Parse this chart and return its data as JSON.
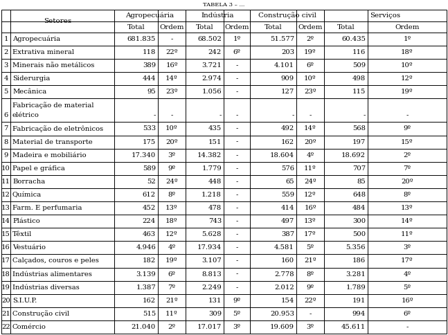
{
  "col_groups": [
    "Agropecuária",
    "Indústria",
    "Construção civil",
    "Serviços"
  ],
  "data": [
    [
      "681.835",
      "-",
      "68.502",
      "1º",
      "51.577",
      "2º",
      "60.435",
      "1º"
    ],
    [
      "118",
      "22º",
      "242",
      "6º",
      "203",
      "19º",
      "116",
      "18º"
    ],
    [
      "389",
      "16º",
      "3.721",
      "-",
      "4.101",
      "6º",
      "509",
      "10º"
    ],
    [
      "444",
      "14º",
      "2.974",
      "-",
      "909",
      "10º",
      "498",
      "12º"
    ],
    [
      "95",
      "23º",
      "1.056",
      "-",
      "127",
      "23º",
      "115",
      "19º"
    ],
    [
      "-",
      "-",
      "-",
      "-",
      "-",
      "-",
      "-",
      "-"
    ],
    [
      "533",
      "10º",
      "435",
      "-",
      "492",
      "14º",
      "568",
      "9º"
    ],
    [
      "175",
      "20º",
      "151",
      "-",
      "162",
      "20º",
      "197",
      "15º"
    ],
    [
      "17.340",
      "3º",
      "14.382",
      "-",
      "18.604",
      "4º",
      "18.692",
      "2º"
    ],
    [
      "589",
      "9º",
      "1.779",
      "-",
      "576",
      "11º",
      "707",
      "7º"
    ],
    [
      "52",
      "24º",
      "448",
      "-",
      "65",
      "24º",
      "85",
      "20º"
    ],
    [
      "612",
      "8º",
      "1.218",
      "-",
      "559",
      "12º",
      "648",
      "8º"
    ],
    [
      "452",
      "13º",
      "478",
      "-",
      "414",
      "16º",
      "484",
      "13º"
    ],
    [
      "224",
      "18º",
      "743",
      "-",
      "497",
      "13º",
      "300",
      "14º"
    ],
    [
      "463",
      "12º",
      "5.628",
      "-",
      "387",
      "17º",
      "500",
      "11º"
    ],
    [
      "4.946",
      "4º",
      "17.934",
      "-",
      "4.581",
      "5º",
      "5.356",
      "3º"
    ],
    [
      "182",
      "19º",
      "3.107",
      "-",
      "160",
      "21º",
      "186",
      "17º"
    ],
    [
      "3.139",
      "6º",
      "8.813",
      "-",
      "2.778",
      "8º",
      "3.281",
      "4º"
    ],
    [
      "1.387",
      "7º",
      "2.249",
      "-",
      "2.012",
      "9º",
      "1.789",
      "5º"
    ],
    [
      "162",
      "21º",
      "131",
      "9º",
      "154",
      "22º",
      "191",
      "16º"
    ],
    [
      "515",
      "11º",
      "309",
      "5º",
      "20.953",
      "-",
      "994",
      "6º"
    ],
    [
      "21.040",
      "2º",
      "17.017",
      "3º",
      "19.609",
      "3º",
      "45.611",
      "-"
    ]
  ],
  "row_labels": [
    [
      "1",
      "Agropecuária"
    ],
    [
      "2",
      "Extrativa mineral"
    ],
    [
      "3",
      "Minerais não metálicos"
    ],
    [
      "4",
      "Siderurgia"
    ],
    [
      "5",
      "Mecânica"
    ],
    [
      "6",
      "Fabricação de material\nelétrico"
    ],
    [
      "7",
      "Fabricação de eletrônicos"
    ],
    [
      "8",
      "Material de transporte"
    ],
    [
      "9",
      "Madeira e mobiliário"
    ],
    [
      "10",
      "Papel e gráfica"
    ],
    [
      "11",
      "Borracha"
    ],
    [
      "12",
      "Química"
    ],
    [
      "13",
      "Farm. E perfumaria"
    ],
    [
      "14",
      "Plástico"
    ],
    [
      "15",
      "Têxtil"
    ],
    [
      "16",
      "Vestuário"
    ],
    [
      "17",
      "Calçados, couros e peles"
    ],
    [
      "18",
      "Indústrias alimentares"
    ],
    [
      "19",
      "Indústrias diversas"
    ],
    [
      "20",
      "S.I.U.P."
    ],
    [
      "21",
      "Construção civil"
    ],
    [
      "22",
      "Comércio"
    ]
  ],
  "bg_color": "#ffffff",
  "font_size": 7.2,
  "font_family": "DejaVu Serif"
}
